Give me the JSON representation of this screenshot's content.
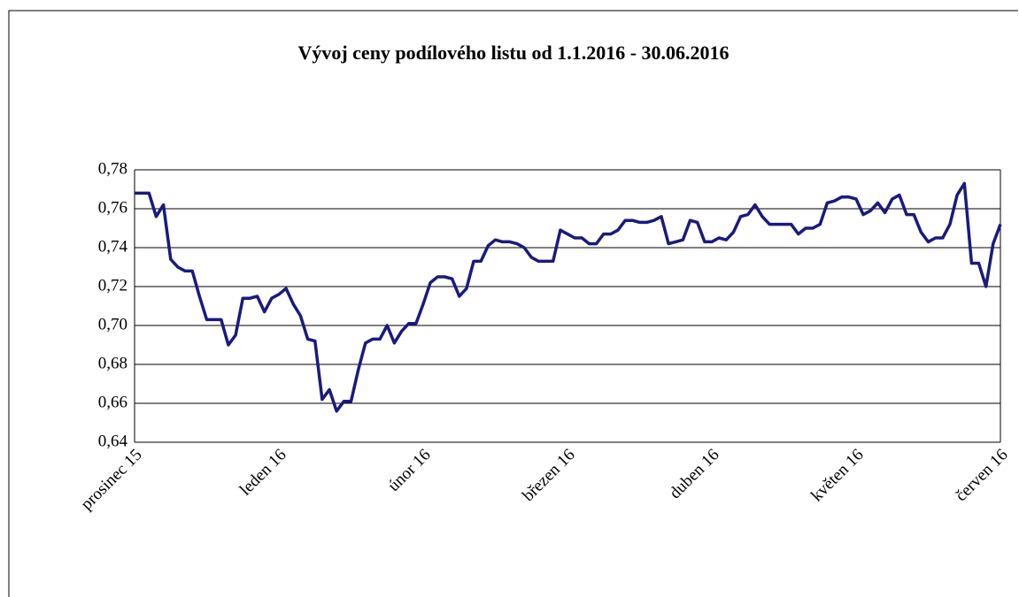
{
  "chart_data": {
    "type": "line",
    "title": "Vývoj ceny podílového listu od 1.1.2016 - 30.06.2016",
    "categories": [
      "prosinec 15",
      null,
      null,
      null,
      null,
      null,
      null,
      null,
      null,
      null,
      null,
      null,
      null,
      null,
      null,
      null,
      null,
      null,
      null,
      null,
      "leden 16",
      null,
      null,
      null,
      null,
      null,
      null,
      null,
      null,
      null,
      null,
      null,
      null,
      null,
      null,
      null,
      null,
      null,
      null,
      null,
      "únor 16",
      null,
      null,
      null,
      null,
      null,
      null,
      null,
      null,
      null,
      null,
      null,
      null,
      null,
      null,
      null,
      null,
      null,
      null,
      null,
      "březen 16",
      null,
      null,
      null,
      null,
      null,
      null,
      null,
      null,
      null,
      null,
      null,
      null,
      null,
      null,
      null,
      null,
      null,
      null,
      null,
      "duben 16",
      null,
      null,
      null,
      null,
      null,
      null,
      null,
      null,
      null,
      null,
      null,
      null,
      null,
      null,
      null,
      null,
      null,
      null,
      null,
      "květen 16",
      null,
      null,
      null,
      null,
      null,
      null,
      null,
      null,
      null,
      null,
      null,
      null,
      null,
      null,
      null,
      null,
      null,
      null,
      null,
      "červen 16"
    ],
    "values": [
      0.768,
      0.768,
      0.768,
      0.756,
      0.762,
      0.734,
      0.73,
      0.728,
      0.728,
      0.715,
      0.703,
      0.703,
      0.703,
      0.69,
      0.695,
      0.714,
      0.714,
      0.715,
      0.707,
      0.714,
      0.716,
      0.719,
      0.711,
      0.705,
      0.693,
      0.692,
      0.662,
      0.667,
      0.656,
      0.661,
      0.661,
      0.677,
      0.691,
      0.693,
      0.693,
      0.7,
      0.691,
      0.697,
      0.701,
      0.701,
      0.711,
      0.722,
      0.725,
      0.725,
      0.724,
      0.715,
      0.719,
      0.733,
      0.733,
      0.741,
      0.744,
      0.743,
      0.743,
      0.742,
      0.74,
      0.735,
      0.733,
      0.733,
      0.733,
      0.749,
      0.747,
      0.745,
      0.745,
      0.742,
      0.742,
      0.747,
      0.747,
      0.749,
      0.754,
      0.754,
      0.753,
      0.753,
      0.754,
      0.756,
      0.742,
      0.743,
      0.744,
      0.754,
      0.753,
      0.743,
      0.743,
      0.745,
      0.744,
      0.748,
      0.756,
      0.757,
      0.762,
      0.756,
      0.752,
      0.752,
      0.752,
      0.752,
      0.747,
      0.75,
      0.75,
      0.752,
      0.763,
      0.764,
      0.766,
      0.766,
      0.765,
      0.757,
      0.759,
      0.763,
      0.758,
      0.765,
      0.767,
      0.757,
      0.757,
      0.748,
      0.743,
      0.745,
      0.745,
      0.752,
      0.767,
      0.773,
      0.732,
      0.732,
      0.72,
      0.742,
      0.752
    ],
    "color": "#1a1a7e",
    "ylim": [
      0.64,
      0.78
    ],
    "yticks": [
      {
        "value": 0.64,
        "label": "0,64"
      },
      {
        "value": 0.66,
        "label": "0,66"
      },
      {
        "value": 0.68,
        "label": "0,68"
      },
      {
        "value": 0.7,
        "label": "0,70"
      },
      {
        "value": 0.72,
        "label": "0,72"
      },
      {
        "value": 0.74,
        "label": "0,74"
      },
      {
        "value": 0.76,
        "label": "0,76"
      },
      {
        "value": 0.78,
        "label": "0,78"
      }
    ],
    "grid": true
  }
}
